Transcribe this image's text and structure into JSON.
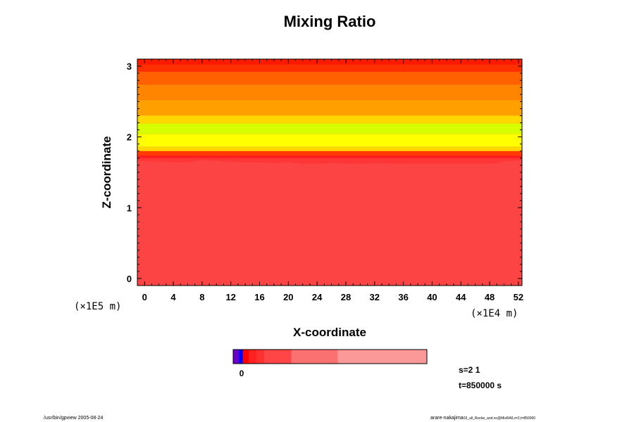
{
  "chart_data": {
    "type": "heatmap",
    "title": "Mixing Ratio",
    "xlabel": "X-coordinate",
    "ylabel": "Z-coordinate",
    "x_unit": "(×1E4 m)",
    "y_unit": "(×1E5 m)",
    "xlim": [
      -1,
      52.5
    ],
    "ylim": [
      -0.1,
      3.1
    ],
    "x_ticks": [
      0,
      4,
      8,
      12,
      16,
      20,
      24,
      28,
      32,
      36,
      40,
      44,
      48,
      52
    ],
    "y_ticks": [
      0,
      1,
      2,
      3
    ],
    "x_tick_labels": [
      "0",
      "4",
      "8",
      "12",
      "16",
      "20",
      "24",
      "28",
      "32",
      "36",
      "40",
      "44",
      "48",
      "52"
    ],
    "y_tick_labels": [
      "0",
      "1",
      "2",
      "3"
    ],
    "lower_layer_color": "#fd4444",
    "bands": [
      {
        "z0": 1.62,
        "z1": 1.7,
        "color": "#ff3636"
      },
      {
        "z0": 1.7,
        "z1": 1.74,
        "color": "#ff1e1e"
      },
      {
        "z0": 1.74,
        "z1": 1.8,
        "color": "#ff3a00"
      },
      {
        "z0": 1.8,
        "z1": 1.86,
        "color": "#ffd800"
      },
      {
        "z0": 1.86,
        "z1": 2.04,
        "color": "#ffff00"
      },
      {
        "z0": 2.04,
        "z1": 2.19,
        "color": "#d8ff00"
      },
      {
        "z0": 2.19,
        "z1": 2.3,
        "color": "#ffd800"
      },
      {
        "z0": 2.3,
        "z1": 2.52,
        "color": "#ffa000"
      },
      {
        "z0": 2.52,
        "z1": 2.74,
        "color": "#ff8400"
      },
      {
        "z0": 2.74,
        "z1": 2.92,
        "color": "#ff6000"
      },
      {
        "z0": 2.92,
        "z1": 3.02,
        "color": "#ff3000"
      },
      {
        "z0": 3.02,
        "z1": 3.1,
        "color": "#ff1a00"
      }
    ],
    "boundary": {
      "x": [
        -1,
        2,
        4,
        6,
        8,
        10,
        12,
        14,
        16,
        18,
        20,
        22,
        24,
        26,
        28,
        30,
        32,
        34,
        36,
        38,
        40,
        42,
        44,
        46,
        48,
        50,
        52.5
      ],
      "z": [
        1.66,
        1.65,
        1.64,
        1.64,
        1.67,
        1.66,
        1.65,
        1.64,
        1.64,
        1.63,
        1.64,
        1.62,
        1.61,
        1.63,
        1.62,
        1.61,
        1.63,
        1.62,
        1.62,
        1.61,
        1.6,
        1.58,
        1.56,
        1.59,
        1.61,
        1.65,
        1.67
      ]
    },
    "colorbar": {
      "tick_label": "0",
      "segments": [
        {
          "frac": 0.03,
          "color": "#6a00c8"
        },
        {
          "frac": 0.02,
          "color": "#0000ff"
        },
        {
          "frac": 0.03,
          "color": "#ff0000"
        },
        {
          "frac": 0.04,
          "color": "#ff2020"
        },
        {
          "frac": 0.04,
          "color": "#ff3030"
        },
        {
          "frac": 0.14,
          "color": "#ff4545"
        },
        {
          "frac": 0.24,
          "color": "#fb7070"
        },
        {
          "frac": 0.46,
          "color": "#fb9898"
        }
      ]
    }
  },
  "info": {
    "s_label": "s=2 1",
    "t_label": "t=850000 s"
  },
  "footer": {
    "left": "/usr/bin/gpview 2005-08-24",
    "right_main": "arare-nakajima",
    "right_small": "03_all_Rsolar_and.nc@MixRAll,x=2,t=850000"
  }
}
